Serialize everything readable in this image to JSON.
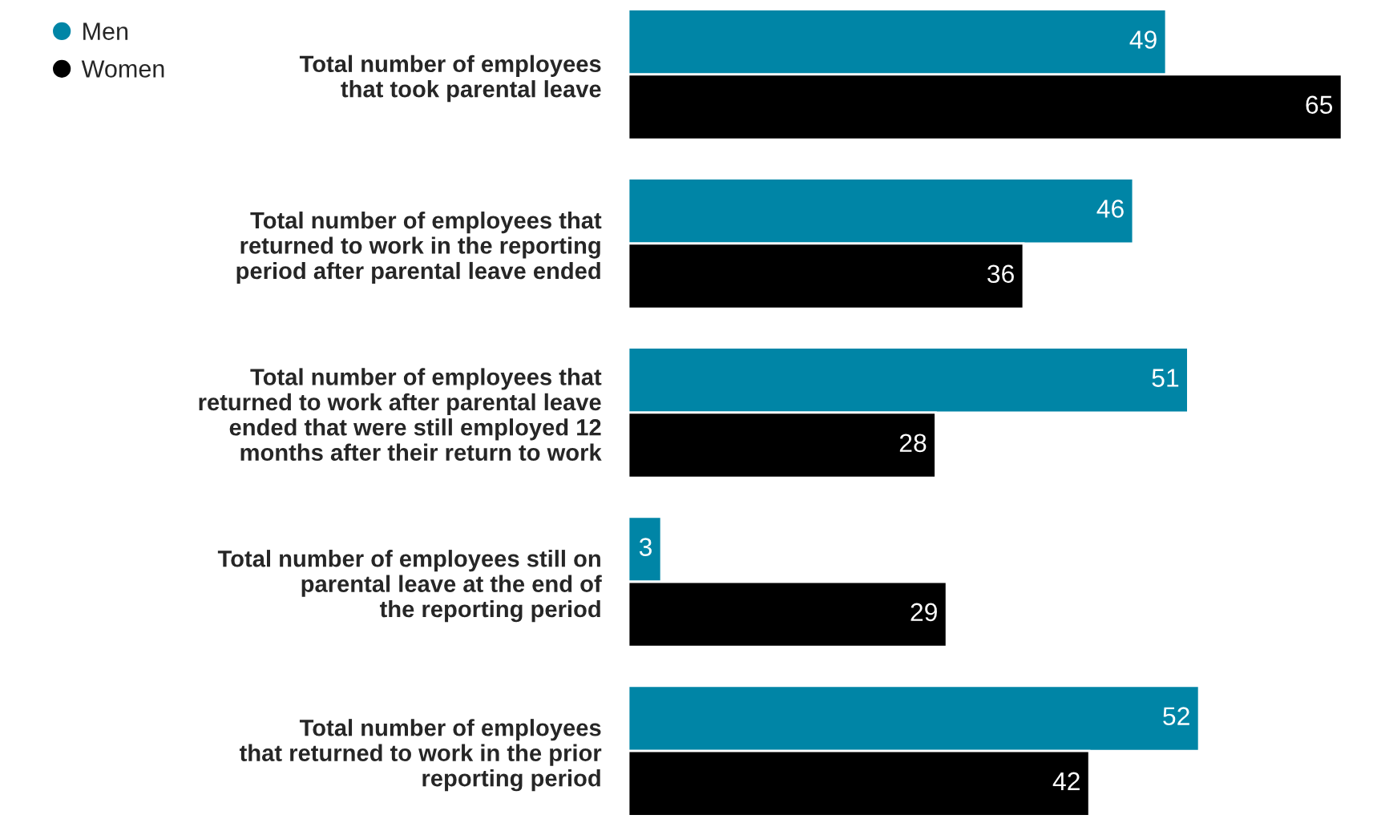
{
  "chart_data": {
    "type": "bar",
    "orientation": "horizontal",
    "data_labels": true,
    "legend": "top left",
    "categories": [
      "Total number of employees\nthat took parental leave",
      "Total number of employees that\nreturned to work in the reporting\nperiod after parental leave ended",
      "Total number of employees that\nreturned to work after parental leave\nended that were still employed 12\nmonths after their return to work",
      "Total number of employees still on\nparental leave at the end of\nthe reporting period",
      "Total number of employees\nthat returned to work in the prior\nreporting period"
    ],
    "series": [
      {
        "name": "Men",
        "color": "#0085a6",
        "values": [
          49,
          46,
          51,
          3,
          52
        ]
      },
      {
        "name": "Women",
        "color": "#000000",
        "values": [
          65,
          36,
          28,
          29,
          42
        ]
      }
    ]
  }
}
